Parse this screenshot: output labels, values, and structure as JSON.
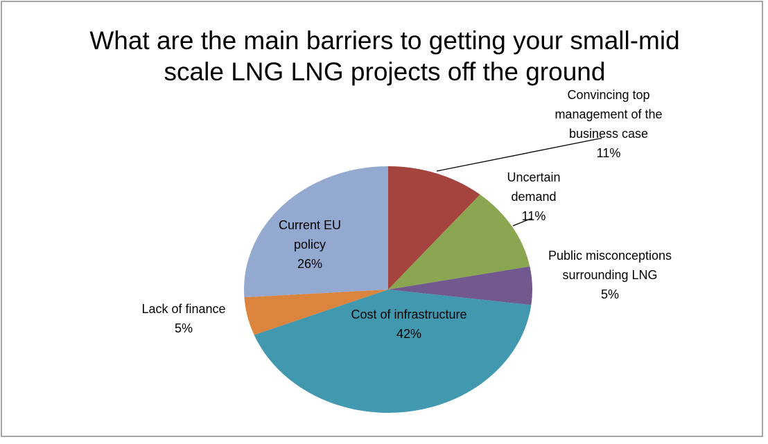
{
  "chart_data": {
    "type": "pie",
    "title": "What are the main barriers to getting your small-mid scale LNG LNG projects off the ground",
    "categories": [
      "Convincing top management of the business case",
      "Uncertain demand",
      "Public misconceptions surrounding LNG",
      "Cost of infrastructure",
      "Lack of finance",
      "Current EU policy"
    ],
    "values": [
      11,
      11,
      5,
      42,
      5,
      26
    ],
    "value_labels": [
      "11%",
      "11%",
      "5%",
      "42%",
      "5%",
      "26%"
    ],
    "colors": [
      "#a5433f",
      "#8ba650",
      "#71588f",
      "#4198af",
      "#db843d",
      "#93a9cf"
    ]
  }
}
